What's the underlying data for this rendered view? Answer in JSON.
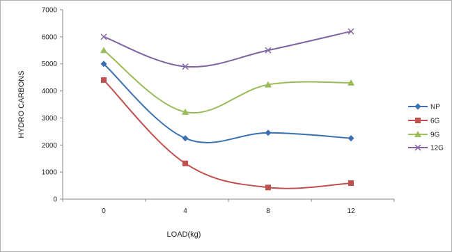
{
  "chart_data": {
    "type": "line",
    "title": "",
    "xlabel": "LOAD(kg)",
    "ylabel": "HYDRO CARBONS",
    "categories": [
      "0",
      "4",
      "8",
      "12"
    ],
    "ylim": [
      0,
      7000
    ],
    "yticks": [
      "0",
      "1000",
      "2000",
      "3000",
      "4000",
      "5000",
      "6000",
      "7000"
    ],
    "grid": false,
    "legend_position": "right",
    "series": [
      {
        "name": "NP",
        "color": "#3A6FB0",
        "marker": "diamond",
        "values": [
          5000,
          2250,
          2450,
          2250
        ]
      },
      {
        "name": "6G",
        "color": "#C0504D",
        "marker": "square",
        "values": [
          4400,
          1320,
          430,
          590
        ]
      },
      {
        "name": "9G",
        "color": "#9BBB59",
        "marker": "triangle",
        "values": [
          5500,
          3220,
          4230,
          4300
        ]
      },
      {
        "name": "12G",
        "color": "#7F63A2",
        "marker": "x",
        "values": [
          6000,
          4900,
          5500,
          6200
        ]
      }
    ]
  }
}
